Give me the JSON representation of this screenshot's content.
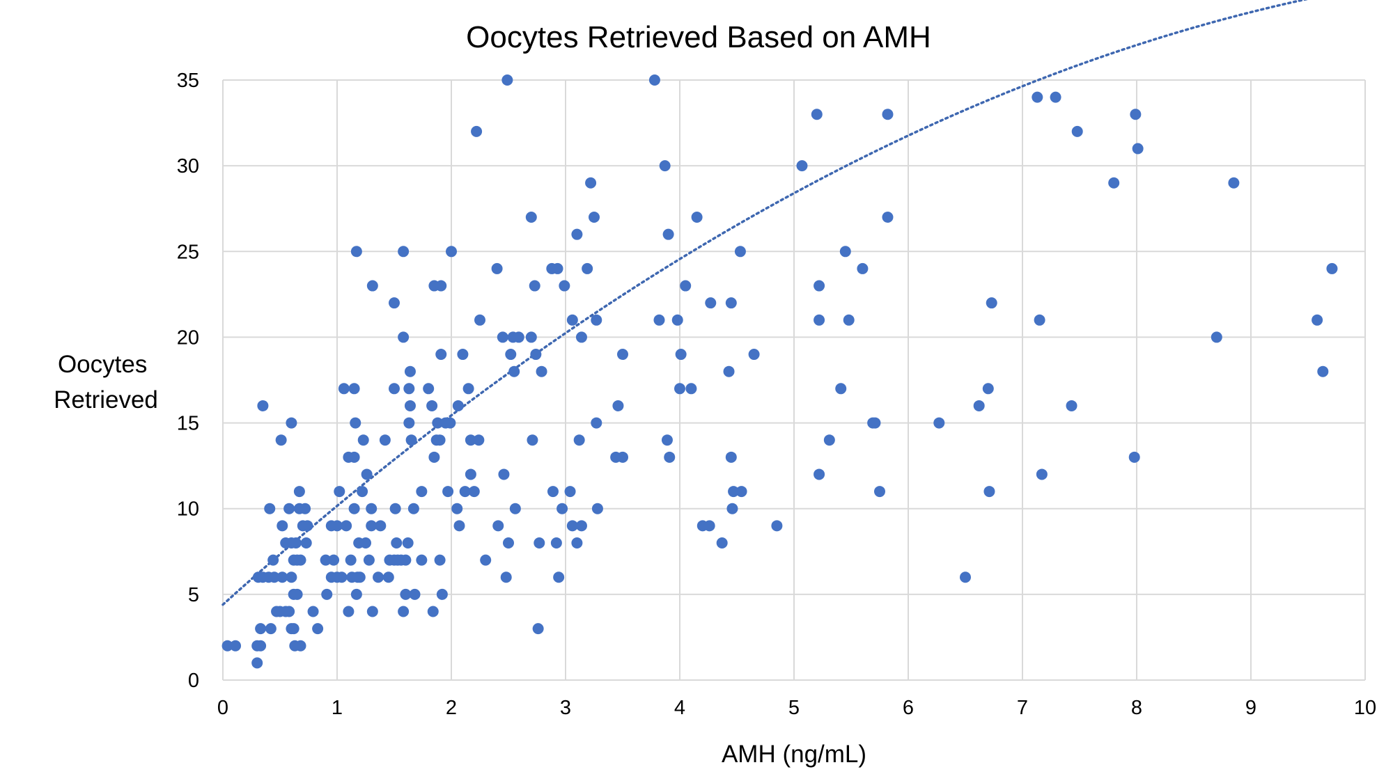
{
  "colors": {
    "point": "#4472c4",
    "trendline": "#3e67b0",
    "grid": "#d9d9d9",
    "text": "#000000"
  },
  "chart_data": {
    "type": "scatter",
    "title": "Oocytes Retrieved Based on AMH",
    "xlabel": "AMH (ng/mL)",
    "ylabel_lines": [
      "Oocytes",
      "Retrieved"
    ],
    "xlim": [
      0,
      10
    ],
    "ylim": [
      0,
      35
    ],
    "x_ticks": [
      "0",
      "1",
      "2",
      "3",
      "4",
      "5",
      "6",
      "7",
      "8",
      "9",
      "10"
    ],
    "y_ticks": [
      "0",
      "5",
      "10",
      "15",
      "20",
      "25",
      "30",
      "35"
    ],
    "grid": true,
    "legend": false,
    "trendline": {
      "type": "polynomial-dotted",
      "coefficients": [
        4.4,
        6.0,
        -0.24
      ],
      "x_range": [
        0,
        10
      ]
    },
    "points": [
      [
        0.04,
        2
      ],
      [
        0.11,
        2
      ],
      [
        0.3,
        1
      ],
      [
        0.3,
        2
      ],
      [
        0.33,
        2
      ],
      [
        0.33,
        3
      ],
      [
        0.31,
        6
      ],
      [
        0.35,
        6
      ],
      [
        0.35,
        16
      ],
      [
        0.4,
        6
      ],
      [
        0.41,
        10
      ],
      [
        0.42,
        3
      ],
      [
        0.44,
        7
      ],
      [
        0.45,
        6
      ],
      [
        0.47,
        4
      ],
      [
        0.5,
        4
      ],
      [
        0.51,
        14
      ],
      [
        0.52,
        6
      ],
      [
        0.52,
        9
      ],
      [
        0.55,
        4
      ],
      [
        0.55,
        8
      ],
      [
        0.58,
        10
      ],
      [
        0.58,
        4
      ],
      [
        0.6,
        3
      ],
      [
        0.6,
        6
      ],
      [
        0.6,
        8
      ],
      [
        0.6,
        15
      ],
      [
        0.62,
        3
      ],
      [
        0.62,
        5
      ],
      [
        0.62,
        7
      ],
      [
        0.63,
        2
      ],
      [
        0.64,
        8
      ],
      [
        0.65,
        7
      ],
      [
        0.65,
        5
      ],
      [
        0.67,
        10
      ],
      [
        0.68,
        7
      ],
      [
        0.68,
        2
      ],
      [
        0.67,
        11
      ],
      [
        0.7,
        9
      ],
      [
        0.72,
        10
      ],
      [
        0.73,
        8
      ],
      [
        0.74,
        9
      ],
      [
        0.79,
        4
      ],
      [
        0.83,
        3
      ],
      [
        0.9,
        7
      ],
      [
        0.91,
        5
      ],
      [
        0.95,
        9
      ],
      [
        0.95,
        6
      ],
      [
        0.97,
        7
      ],
      [
        1.0,
        9
      ],
      [
        1.0,
        6
      ],
      [
        1.02,
        11
      ],
      [
        1.04,
        6
      ],
      [
        1.06,
        17
      ],
      [
        1.08,
        9
      ],
      [
        1.1,
        13
      ],
      [
        1.1,
        4
      ],
      [
        1.12,
        7
      ],
      [
        1.13,
        6
      ],
      [
        1.15,
        10
      ],
      [
        1.15,
        13
      ],
      [
        1.15,
        17
      ],
      [
        1.16,
        15
      ],
      [
        1.17,
        25
      ],
      [
        1.17,
        5
      ],
      [
        1.18,
        6
      ],
      [
        1.19,
        8
      ],
      [
        1.2,
        6
      ],
      [
        1.22,
        11
      ],
      [
        1.23,
        14
      ],
      [
        1.25,
        8
      ],
      [
        1.26,
        12
      ],
      [
        1.28,
        7
      ],
      [
        1.3,
        10
      ],
      [
        1.3,
        9
      ],
      [
        1.31,
        23
      ],
      [
        1.31,
        4
      ],
      [
        1.36,
        6
      ],
      [
        1.38,
        9
      ],
      [
        1.42,
        14
      ],
      [
        1.45,
        6
      ],
      [
        1.46,
        7
      ],
      [
        1.5,
        22
      ],
      [
        1.5,
        17
      ],
      [
        1.5,
        7
      ],
      [
        1.51,
        10
      ],
      [
        1.52,
        8
      ],
      [
        1.53,
        7
      ],
      [
        1.56,
        7
      ],
      [
        1.58,
        4
      ],
      [
        1.58,
        20
      ],
      [
        1.58,
        25
      ],
      [
        1.6,
        5
      ],
      [
        1.6,
        7
      ],
      [
        1.62,
        8
      ],
      [
        1.63,
        17
      ],
      [
        1.63,
        15
      ],
      [
        1.64,
        18
      ],
      [
        1.64,
        16
      ],
      [
        1.65,
        14
      ],
      [
        1.67,
        10
      ],
      [
        1.68,
        5
      ],
      [
        1.74,
        11
      ],
      [
        1.74,
        7
      ],
      [
        1.8,
        17
      ],
      [
        1.83,
        16
      ],
      [
        1.84,
        4
      ],
      [
        1.85,
        13
      ],
      [
        1.85,
        23
      ],
      [
        1.87,
        14
      ],
      [
        1.88,
        15
      ],
      [
        1.9,
        14
      ],
      [
        1.9,
        7
      ],
      [
        1.91,
        23
      ],
      [
        1.91,
        19
      ],
      [
        1.92,
        5
      ],
      [
        1.95,
        15
      ],
      [
        1.97,
        11
      ],
      [
        1.99,
        15
      ],
      [
        2.0,
        25
      ],
      [
        2.05,
        10
      ],
      [
        2.06,
        16
      ],
      [
        2.07,
        9
      ],
      [
        2.1,
        19
      ],
      [
        2.12,
        11
      ],
      [
        2.15,
        17
      ],
      [
        2.17,
        14
      ],
      [
        2.17,
        12
      ],
      [
        2.2,
        11
      ],
      [
        2.22,
        32
      ],
      [
        2.24,
        14
      ],
      [
        2.25,
        21
      ],
      [
        2.3,
        7
      ],
      [
        2.4,
        24
      ],
      [
        2.41,
        9
      ],
      [
        2.45,
        20
      ],
      [
        2.46,
        12
      ],
      [
        2.48,
        6
      ],
      [
        2.49,
        35
      ],
      [
        2.5,
        8
      ],
      [
        2.52,
        19
      ],
      [
        2.54,
        20
      ],
      [
        2.55,
        18
      ],
      [
        2.56,
        10
      ],
      [
        2.59,
        20
      ],
      [
        2.7,
        27
      ],
      [
        2.7,
        20
      ],
      [
        2.71,
        14
      ],
      [
        2.73,
        23
      ],
      [
        2.74,
        19
      ],
      [
        2.76,
        3
      ],
      [
        2.77,
        8
      ],
      [
        2.79,
        18
      ],
      [
        2.88,
        24
      ],
      [
        2.89,
        11
      ],
      [
        2.92,
        8
      ],
      [
        2.93,
        24
      ],
      [
        2.94,
        6
      ],
      [
        2.97,
        10
      ],
      [
        2.99,
        23
      ],
      [
        3.04,
        11
      ],
      [
        3.06,
        21
      ],
      [
        3.06,
        9
      ],
      [
        3.1,
        26
      ],
      [
        3.1,
        8
      ],
      [
        3.12,
        14
      ],
      [
        3.14,
        9
      ],
      [
        3.14,
        20
      ],
      [
        3.19,
        24
      ],
      [
        3.22,
        29
      ],
      [
        3.25,
        27
      ],
      [
        3.27,
        21
      ],
      [
        3.27,
        15
      ],
      [
        3.28,
        10
      ],
      [
        3.44,
        13
      ],
      [
        3.46,
        16
      ],
      [
        3.5,
        13
      ],
      [
        3.5,
        19
      ],
      [
        3.78,
        35
      ],
      [
        3.82,
        21
      ],
      [
        3.87,
        30
      ],
      [
        3.89,
        14
      ],
      [
        3.9,
        26
      ],
      [
        3.91,
        13
      ],
      [
        3.98,
        21
      ],
      [
        4.0,
        17
      ],
      [
        4.01,
        19
      ],
      [
        4.05,
        23
      ],
      [
        4.1,
        17
      ],
      [
        4.15,
        27
      ],
      [
        4.2,
        9
      ],
      [
        4.26,
        9
      ],
      [
        4.27,
        22
      ],
      [
        4.37,
        8
      ],
      [
        4.43,
        18
      ],
      [
        4.45,
        22
      ],
      [
        4.45,
        13
      ],
      [
        4.46,
        10
      ],
      [
        4.47,
        11
      ],
      [
        4.54,
        11
      ],
      [
        4.53,
        25
      ],
      [
        4.65,
        19
      ],
      [
        4.85,
        9
      ],
      [
        5.07,
        30
      ],
      [
        5.2,
        33
      ],
      [
        5.22,
        23
      ],
      [
        5.22,
        21
      ],
      [
        5.22,
        12
      ],
      [
        5.31,
        14
      ],
      [
        5.41,
        17
      ],
      [
        5.45,
        25
      ],
      [
        5.48,
        21
      ],
      [
        5.6,
        24
      ],
      [
        5.69,
        15
      ],
      [
        5.71,
        15
      ],
      [
        5.75,
        11
      ],
      [
        5.82,
        33
      ],
      [
        5.82,
        27
      ],
      [
        6.27,
        15
      ],
      [
        6.5,
        6
      ],
      [
        6.62,
        16
      ],
      [
        6.7,
        17
      ],
      [
        6.71,
        11
      ],
      [
        6.73,
        22
      ],
      [
        7.13,
        34
      ],
      [
        7.15,
        21
      ],
      [
        7.17,
        12
      ],
      [
        7.29,
        34
      ],
      [
        7.43,
        16
      ],
      [
        7.48,
        32
      ],
      [
        7.8,
        29
      ],
      [
        7.98,
        13
      ],
      [
        7.99,
        33
      ],
      [
        8.01,
        31
      ],
      [
        8.7,
        20
      ],
      [
        8.85,
        29
      ],
      [
        9.58,
        21
      ],
      [
        9.63,
        18
      ],
      [
        9.71,
        24
      ]
    ]
  }
}
